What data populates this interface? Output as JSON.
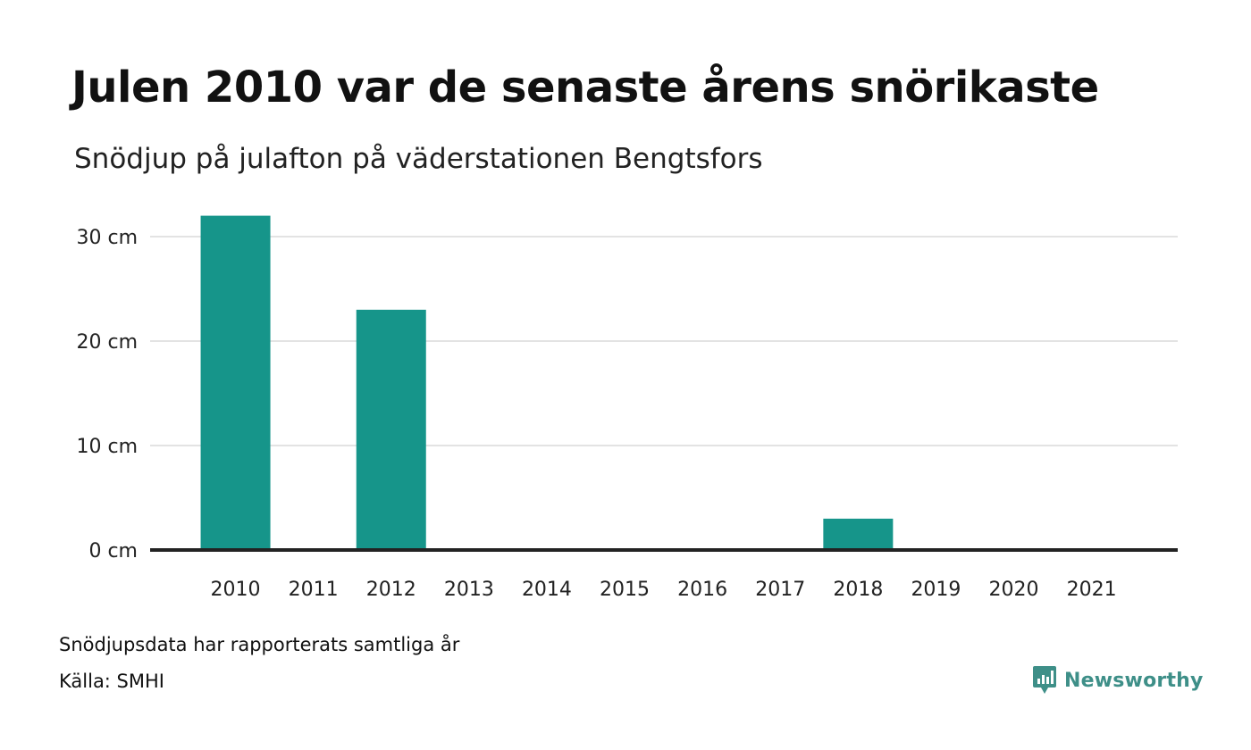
{
  "title": "Julen 2010 var de senaste årens snörikaste",
  "subtitle": "Snödjup på julafton på väderstationen Bengtsfors",
  "footnote": "Snödjupsdata har rapporterats samtliga år",
  "source": "Källa: SMHI",
  "brand": {
    "name": "Newsworthy",
    "icon": "newsworthy-logo-icon",
    "color": "#3e8f88"
  },
  "chart_data": {
    "type": "bar",
    "categories": [
      "2010",
      "2011",
      "2012",
      "2013",
      "2014",
      "2015",
      "2016",
      "2017",
      "2018",
      "2019",
      "2020",
      "2021"
    ],
    "values": [
      32,
      0,
      23,
      0,
      0,
      0,
      0,
      0,
      3,
      0,
      0,
      0
    ],
    "ylim": [
      0,
      33
    ],
    "yticks": [
      0,
      10,
      20,
      30
    ],
    "ytick_labels": [
      "0 cm",
      "10 cm",
      "20 cm",
      "30 cm"
    ],
    "unit": "cm",
    "grid": true,
    "bar_color": "#16958a",
    "grid_color": "#e3e3e3",
    "baseline_color": "#222222"
  }
}
